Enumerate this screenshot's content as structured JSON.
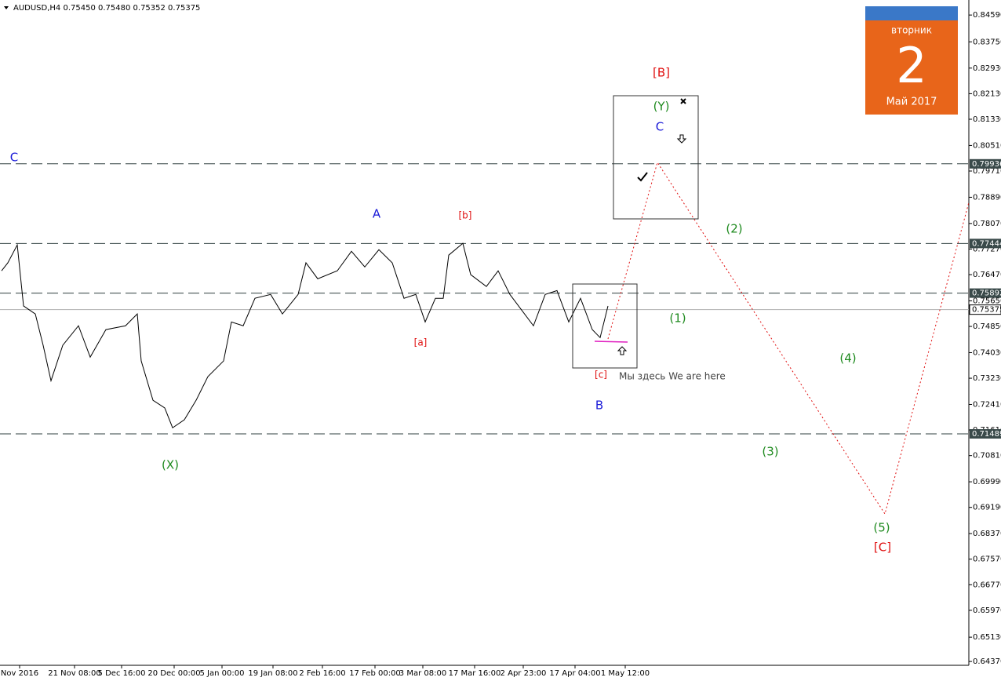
{
  "chart_data": {
    "type": "line",
    "title": "AUDUSD,H4  0.75450 0.75480 0.75352 0.75375",
    "x": [
      2,
      10,
      22,
      30,
      45,
      55,
      65,
      80,
      100,
      115,
      135,
      160,
      175,
      180,
      195,
      210,
      220,
      235,
      250,
      265,
      285,
      295,
      310,
      325,
      345,
      360,
      380,
      390,
      405,
      430,
      448,
      465,
      483,
      500,
      515,
      530,
      542,
      555,
      565,
      572,
      590,
      600,
      620,
      635,
      650,
      665,
      680,
      695,
      710,
      725,
      740,
      755,
      765,
      775
    ],
    "series": [
      {
        "color": "#000000",
        "values": [
          0.7659,
          0.7684,
          0.774,
          0.7549,
          0.7524,
          0.7426,
          0.7315,
          0.7426,
          0.7487,
          0.7389,
          0.7475,
          0.7487,
          0.7524,
          0.7377,
          0.7254,
          0.723,
          0.7168,
          0.7193,
          0.7254,
          0.7328,
          0.7377,
          0.7499,
          0.7487,
          0.7573,
          0.7585,
          0.7524,
          0.7585,
          0.7684,
          0.7634,
          0.7659,
          0.772,
          0.7671,
          0.7725,
          0.7684,
          0.7573,
          0.7585,
          0.7499,
          0.7573,
          0.7573,
          0.7708,
          0.7745,
          0.7647,
          0.761,
          0.7659,
          0.7585,
          0.7536,
          0.7487,
          0.7585,
          0.7597,
          0.7499,
          0.7573,
          0.7475,
          0.745,
          0.7549
        ]
      }
    ],
    "xlim": [
      0,
      1235
    ],
    "ylim": [
      0.6425,
      0.8506
    ],
    "xticks": [
      {
        "value": 25,
        "label": "Nov 2016"
      },
      {
        "value": 95,
        "label": "21 Nov 08:00"
      },
      {
        "value": 155,
        "label": "5 Dec 16:00"
      },
      {
        "value": 222,
        "label": "20 Dec 00:00"
      },
      {
        "value": 283,
        "label": "5 Jan 00:00"
      },
      {
        "value": 348,
        "label": "19 Jan 08:00"
      },
      {
        "value": 411,
        "label": "2 Feb 16:00"
      },
      {
        "value": 478,
        "label": "17 Feb 00:00"
      },
      {
        "value": 539,
        "label": "3 Mar 08:00"
      },
      {
        "value": 605,
        "label": "17 Mar 16:00"
      },
      {
        "value": 667,
        "label": "2 Apr 23:00"
      },
      {
        "value": 733,
        "label": "17 Apr 04:00"
      },
      {
        "value": 797,
        "label": "1 May 12:00"
      }
    ],
    "yticks": [
      {
        "value": 0.8459,
        "label": "0.84590"
      },
      {
        "value": 0.8375,
        "label": "0.83750"
      },
      {
        "value": 0.8293,
        "label": "0.82930"
      },
      {
        "value": 0.8213,
        "label": "0.82130"
      },
      {
        "value": 0.8133,
        "label": "0.81330"
      },
      {
        "value": 0.8051,
        "label": "0.80510"
      },
      {
        "value": 0.7971,
        "label": "0.79710"
      },
      {
        "value": 0.7889,
        "label": "0.78890"
      },
      {
        "value": 0.7807,
        "label": "0.78070"
      },
      {
        "value": 0.7727,
        "label": "0.77270"
      },
      {
        "value": 0.7647,
        "label": "0.76470"
      },
      {
        "value": 0.7565,
        "label": "0.75650"
      },
      {
        "value": 0.7485,
        "label": "0.74850"
      },
      {
        "value": 0.7403,
        "label": "0.74030"
      },
      {
        "value": 0.7323,
        "label": "0.73230"
      },
      {
        "value": 0.7241,
        "label": "0.72410"
      },
      {
        "value": 0.7161,
        "label": "0.71610"
      },
      {
        "value": 0.7081,
        "label": "0.70810"
      },
      {
        "value": 0.6999,
        "label": "0.69990"
      },
      {
        "value": 0.6919,
        "label": "0.69190"
      },
      {
        "value": 0.6837,
        "label": "0.68370"
      },
      {
        "value": 0.6757,
        "label": "0.67570"
      },
      {
        "value": 0.6677,
        "label": "0.66770"
      },
      {
        "value": 0.6597,
        "label": "0.65970"
      },
      {
        "value": 0.6513,
        "label": "0.65130"
      },
      {
        "value": 0.6437,
        "label": "0.64370"
      }
    ],
    "levels": [
      {
        "value": 0.79936,
        "label": "0.79936"
      },
      {
        "value": 0.77444,
        "label": "0.77444"
      },
      {
        "value": 0.75892,
        "label": "0.75892"
      },
      {
        "value": 0.71489,
        "label": "0.71489"
      }
    ],
    "current_price": {
      "value": 0.75375,
      "label": "0.75375"
    },
    "annotations": [
      "C",
      "A",
      "[b]",
      "[a]",
      "[B]",
      "(Y)",
      "C",
      "(2)",
      "(1)",
      "(4)",
      "[c]",
      "Мы здесь We are here",
      "B",
      "(X)",
      "(3)",
      "(5)",
      "[C]"
    ]
  },
  "calendar": {
    "weekday": "вторник",
    "day": "2",
    "month": "Май 2017"
  }
}
